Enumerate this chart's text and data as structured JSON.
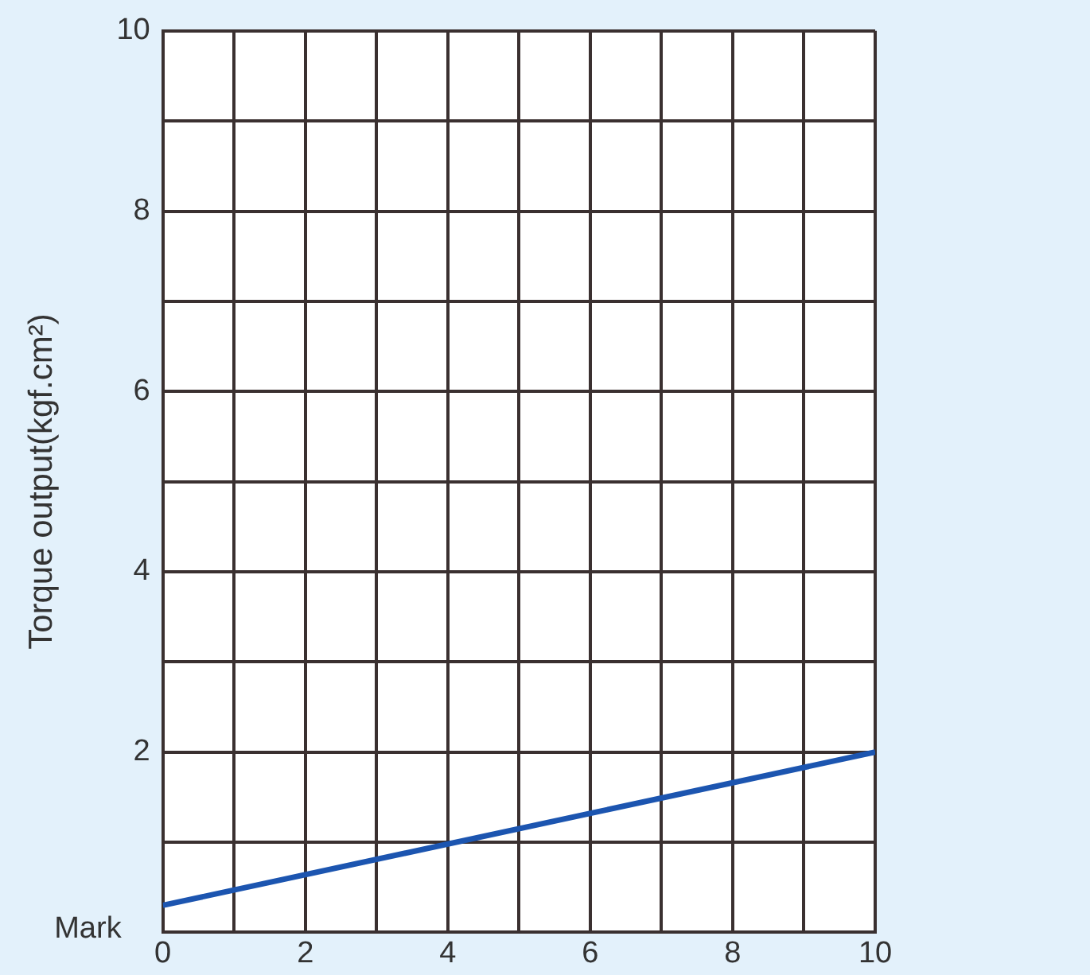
{
  "chart_data": {
    "type": "line",
    "xlabel": "Mark",
    "ylabel": "Torque output(kgf.cm²)",
    "x": [
      0,
      10
    ],
    "series": [
      {
        "color": "#1c55b0",
        "values": [
          0.3,
          2.0
        ]
      }
    ],
    "xlim": [
      0,
      10
    ],
    "ylim": [
      0,
      10
    ],
    "xticks": [
      0,
      {
        "value": 1,
        "label": null
      },
      2,
      {
        "value": 3,
        "label": null
      },
      4,
      {
        "value": 5,
        "label": null
      },
      6,
      {
        "value": 7,
        "label": null
      },
      8,
      {
        "value": 9,
        "label": null
      },
      10
    ],
    "yticks": [
      {
        "value": 0,
        "label": null
      },
      {
        "value": 1,
        "label": null
      },
      2,
      {
        "value": 3,
        "label": null
      },
      4,
      {
        "value": 5,
        "label": null
      },
      6,
      {
        "value": 7,
        "label": null
      },
      8,
      {
        "value": 9,
        "label": null
      },
      10
    ],
    "grid": true,
    "legend": false,
    "marker": "none",
    "line_style": "solid"
  }
}
